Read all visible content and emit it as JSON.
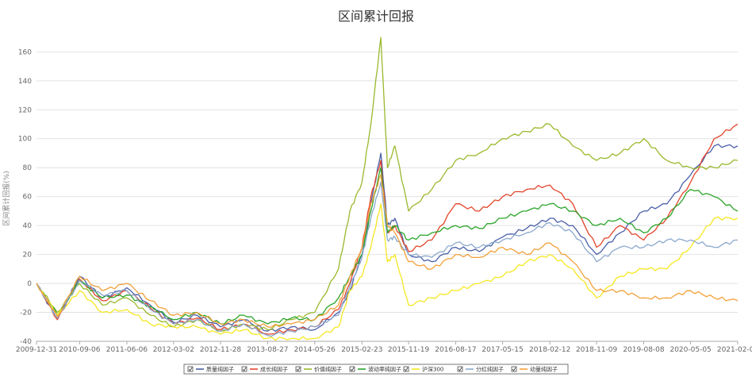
{
  "chart_data": {
    "type": "line",
    "title": "区间累计回报",
    "ylabel": "区间累计回报(%)",
    "xlabel": "",
    "ylim": [
      -40,
      175
    ],
    "yticks": [
      -40,
      -20,
      0,
      20,
      40,
      60,
      80,
      100,
      120,
      140,
      160
    ],
    "xtick_labels": [
      "2009-12-31",
      "2010-09-06",
      "2011-06-06",
      "2012-03-02",
      "2012-11-28",
      "2013-08-27",
      "2014-05-26",
      "2015-02-23",
      "2015-11-19",
      "2016-08-17",
      "2017-05-15",
      "2018-02-12",
      "2018-11-09",
      "2019-08-08",
      "2020-05-05",
      "2021-02-01"
    ],
    "grid": "horizontal",
    "legend_position": "bottom",
    "x": [
      "2009-12-31",
      "2010-05-01",
      "2010-09-06",
      "2011-01-15",
      "2011-06-06",
      "2011-10-20",
      "2012-03-02",
      "2012-07-15",
      "2012-11-28",
      "2013-04-10",
      "2013-08-27",
      "2014-01-10",
      "2014-05-26",
      "2014-10-10",
      "2014-12-15",
      "2015-02-23",
      "2015-04-15",
      "2015-06-12",
      "2015-07-20",
      "2015-09-01",
      "2015-11-19",
      "2016-04-01",
      "2016-08-17",
      "2017-01-01",
      "2017-05-15",
      "2017-10-01",
      "2018-02-12",
      "2018-06-25",
      "2018-11-09",
      "2019-03-25",
      "2019-08-08",
      "2019-12-20",
      "2020-05-05",
      "2020-09-18",
      "2021-02-01"
    ],
    "series": [
      {
        "name": "质量纯因子",
        "color": "#4a5fa8",
        "values": [
          0,
          -25,
          5,
          -10,
          -3,
          -15,
          -27,
          -22,
          -30,
          -25,
          -33,
          -30,
          -32,
          -20,
          -5,
          20,
          55,
          90,
          40,
          45,
          20,
          15,
          25,
          22,
          32,
          38,
          45,
          40,
          20,
          35,
          50,
          55,
          75,
          95,
          95
        ]
      },
      {
        "name": "成长纯因子",
        "color": "#e4452b",
        "values": [
          0,
          -25,
          3,
          -12,
          -5,
          -17,
          -28,
          -24,
          -32,
          -28,
          -35,
          -32,
          -30,
          -18,
          0,
          25,
          60,
          85,
          35,
          40,
          22,
          30,
          55,
          50,
          60,
          65,
          68,
          55,
          25,
          40,
          30,
          45,
          70,
          100,
          110
        ]
      },
      {
        "name": "价值纯因子",
        "color": "#9ab82c",
        "values": [
          0,
          -20,
          0,
          -15,
          -10,
          -22,
          -30,
          -25,
          -33,
          -28,
          -32,
          -25,
          -20,
          10,
          50,
          70,
          110,
          170,
          80,
          95,
          50,
          65,
          85,
          90,
          100,
          105,
          110,
          95,
          85,
          90,
          100,
          85,
          80,
          80,
          85
        ]
      },
      {
        "name": "波动率纯因子",
        "color": "#2aa52a",
        "values": [
          0,
          -22,
          2,
          -10,
          -8,
          -16,
          -25,
          -20,
          -28,
          -22,
          -28,
          -24,
          -25,
          -10,
          5,
          20,
          50,
          80,
          35,
          40,
          30,
          35,
          40,
          38,
          45,
          50,
          55,
          50,
          40,
          45,
          35,
          45,
          65,
          60,
          50
        ]
      },
      {
        "name": "沪深300",
        "color": "#f5e722",
        "values": [
          0,
          -22,
          -5,
          -20,
          -18,
          -28,
          -30,
          -30,
          -35,
          -32,
          -38,
          -38,
          -38,
          -30,
          -5,
          5,
          25,
          55,
          15,
          20,
          -15,
          -10,
          -5,
          0,
          5,
          15,
          20,
          10,
          -10,
          5,
          10,
          10,
          25,
          45,
          45
        ]
      },
      {
        "name": "分红纯因子",
        "color": "#8aa8cc",
        "values": [
          0,
          -24,
          2,
          -8,
          -5,
          -18,
          -28,
          -25,
          -33,
          -28,
          -36,
          -33,
          -30,
          -22,
          -2,
          18,
          45,
          70,
          30,
          32,
          20,
          18,
          28,
          25,
          30,
          35,
          42,
          35,
          15,
          25,
          25,
          30,
          30,
          25,
          30
        ]
      },
      {
        "name": "动量纯因子",
        "color": "#f2a03a",
        "values": [
          0,
          -23,
          5,
          -5,
          0,
          -12,
          -22,
          -20,
          -28,
          -25,
          -30,
          -28,
          -25,
          -15,
          5,
          25,
          55,
          75,
          40,
          35,
          15,
          10,
          20,
          18,
          25,
          20,
          28,
          15,
          -5,
          -5,
          -10,
          -10,
          -5,
          -10,
          -12
        ]
      }
    ]
  }
}
